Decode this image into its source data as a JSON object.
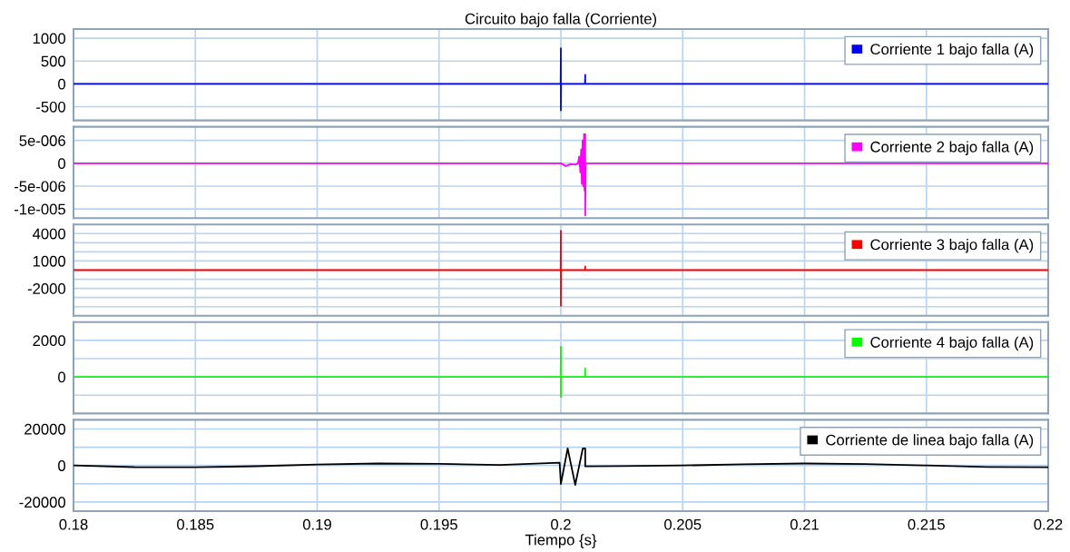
{
  "chart_data": [
    {
      "type": "line",
      "title": "Circuito bajo falla (Corriente)",
      "xlim": [
        0.18,
        0.22
      ],
      "xticks": [
        0.18,
        0.185,
        0.19,
        0.195,
        0.2,
        0.205,
        0.21,
        0.215,
        0.22
      ],
      "ylim": [
        -800,
        1200
      ],
      "yticks": [
        1000,
        500,
        0,
        -500
      ],
      "grid": true,
      "legend": "top right",
      "tick_labels": "y",
      "series": [
        {
          "name": "Corriente 1 bajo falla (A)",
          "color": "#0000ff",
          "x": [
            0.18,
            0.19999,
            0.2,
            0.2,
            0.20001,
            0.20099,
            0.201,
            0.201,
            0.20101,
            0.22
          ],
          "values": [
            0,
            0,
            780,
            -580,
            0,
            0,
            200,
            0,
            0,
            0
          ]
        }
      ]
    },
    {
      "type": "line",
      "xlim": [
        0.18,
        0.22
      ],
      "xticks": [
        0.18,
        0.185,
        0.19,
        0.195,
        0.2,
        0.205,
        0.21,
        0.215,
        0.22
      ],
      "ylim": [
        -1.2e-05,
        8e-06
      ],
      "yticks": [
        {
          "value": 5e-06,
          "label": "5e-006"
        },
        0,
        {
          "value": -5e-06,
          "label": "-5e-006"
        },
        {
          "value": -1e-05,
          "label": "-1e-005"
        }
      ],
      "grid": true,
      "legend": "top right",
      "tick_labels": "y",
      "series": [
        {
          "name": "Corriente 2 bajo falla (A)",
          "color": "#ff00ff",
          "x": [
            0.18,
            0.2,
            0.2002,
            0.2004,
            0.2006,
            0.2007,
            0.20075,
            0.2008,
            0.20083,
            0.20086,
            0.20089,
            0.20092,
            0.20095,
            0.20097,
            0.201,
            0.201,
            0.20102,
            0.22
          ],
          "values": [
            0,
            0,
            -6e-07,
            -2e-07,
            -3e-07,
            0,
            1.5e-06,
            -2e-06,
            3e-06,
            -4.5e-06,
            5e-06,
            -5e-06,
            6.4e-06,
            -6e-06,
            6.4e-06,
            -1.14e-05,
            0,
            0
          ]
        }
      ]
    },
    {
      "type": "line",
      "xlim": [
        0.18,
        0.22
      ],
      "xticks": [
        0.18,
        0.185,
        0.19,
        0.195,
        0.2,
        0.205,
        0.21,
        0.215,
        0.22
      ],
      "ylim": [
        -5000,
        5000
      ],
      "yticks": [
        {
          "value": 5000,
          "label": null
        },
        4000,
        {
          "value": 3000,
          "label": null
        },
        {
          "value": 2000,
          "label": null
        },
        1000,
        {
          "value": 0,
          "label": null
        },
        {
          "value": -1000,
          "label": null
        },
        -2000,
        {
          "value": -3000,
          "label": null
        },
        {
          "value": -4000,
          "label": null
        }
      ],
      "grid": true,
      "legend": "top right",
      "tick_labels": "y",
      "series": [
        {
          "name": "Corriente 3 bajo falla (A)",
          "color": "#ff0000",
          "x": [
            0.18,
            0.19999,
            0.2,
            0.2,
            0.20001,
            0.20099,
            0.201,
            0.201,
            0.20101,
            0.22
          ],
          "values": [
            0,
            0,
            4300,
            -3900,
            0,
            0,
            400,
            0,
            0,
            0
          ]
        }
      ]
    },
    {
      "type": "line",
      "xlim": [
        0.18,
        0.22
      ],
      "xticks": [
        0.18,
        0.185,
        0.19,
        0.195,
        0.2,
        0.205,
        0.21,
        0.215,
        0.22
      ],
      "ylim": [
        -2000,
        3000
      ],
      "yticks": [
        2000,
        {
          "value": 1000,
          "label": null
        },
        0,
        {
          "value": -1000,
          "label": null
        }
      ],
      "grid": true,
      "legend": "top right",
      "tick_labels": "y",
      "series": [
        {
          "name": "Corriente 4 bajo falla (A)",
          "color": "#00ff00",
          "x": [
            0.18,
            0.19999,
            0.2,
            0.2,
            0.20001,
            0.20099,
            0.201,
            0.201,
            0.20101,
            0.22
          ],
          "values": [
            0,
            0,
            1650,
            -1100,
            0,
            0,
            470,
            0,
            0,
            0
          ]
        }
      ]
    },
    {
      "type": "line",
      "xlabel": "Tiempo {s}",
      "xlim": [
        0.18,
        0.22
      ],
      "xticks": [
        0.18,
        0.185,
        0.19,
        0.195,
        0.2,
        0.205,
        0.21,
        0.215,
        0.22
      ],
      "ylim": [
        -25000,
        25000
      ],
      "yticks": [
        20000,
        {
          "value": 10000,
          "label": null
        },
        0,
        {
          "value": -10000,
          "label": null
        },
        -20000
      ],
      "grid": true,
      "legend": "top right",
      "series": [
        {
          "name": "Corriente de linea bajo falla (A)",
          "color": "#000000",
          "x": [
            0.18,
            0.1825,
            0.185,
            0.1875,
            0.19,
            0.1925,
            0.195,
            0.1975,
            0.19995,
            0.2,
            0.20028,
            0.20059,
            0.2009,
            0.201,
            0.201,
            0.2025,
            0.205,
            0.2075,
            0.21,
            0.2125,
            0.215,
            0.2175,
            0.22
          ],
          "values": [
            0,
            -900,
            -1000,
            -400,
            500,
            1100,
            900,
            300,
            1500,
            -10100,
            9300,
            -10600,
            9300,
            9300,
            -500,
            -300,
            0,
            700,
            1100,
            800,
            0,
            -800,
            -1000
          ]
        }
      ]
    }
  ]
}
